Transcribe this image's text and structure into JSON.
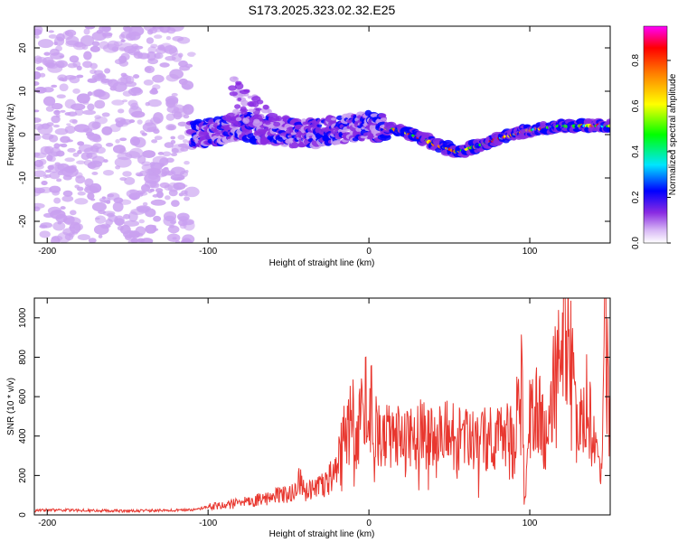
{
  "title": "S173.2025.323.02.32.E25",
  "chart_data": [
    {
      "type": "heatmap",
      "xlabel": "Height of straight line (km)",
      "ylabel": "Frequency (Hz)",
      "xlim": [
        -208,
        150
      ],
      "ylim": [
        -25,
        25
      ],
      "x_ticks": [
        -200,
        -100,
        0,
        100
      ],
      "x_tick_labels": [
        "-200",
        "-100",
        "0",
        "100"
      ],
      "y_ticks": [
        -20,
        -10,
        0,
        10,
        20
      ],
      "y_tick_labels": [
        "-20",
        "-10",
        "0",
        "10",
        "20"
      ],
      "ridge_trace": {
        "x": [
          -110,
          -95,
          -80,
          -60,
          -40,
          -20,
          0,
          20,
          40,
          55,
          65,
          80,
          100,
          120,
          150
        ],
        "y": [
          0,
          0.5,
          2,
          1,
          0,
          1,
          2,
          1,
          -2,
          -4,
          -3,
          -1,
          1,
          2,
          2
        ]
      },
      "colorbar": {
        "label": "Normalized spectral amplitude",
        "range": [
          0,
          0.95
        ],
        "ticks": [
          0.0,
          0.2,
          0.4,
          0.6,
          0.8
        ],
        "tick_labels": [
          "0.0",
          "0.2",
          "0.4",
          "0.6",
          "0.8"
        ],
        "colors": [
          "#ffffff",
          "#c9a0f0",
          "#8a2be2",
          "#0000ff",
          "#00ffff",
          "#00ff00",
          "#ffff00",
          "#ff8000",
          "#ff0000",
          "#ff00ff"
        ]
      }
    },
    {
      "type": "line",
      "xlabel": "Height of straight line (km)",
      "ylabel": "SNR (10 * v/v)",
      "xlim": [
        -208,
        150
      ],
      "ylim": [
        0,
        1100
      ],
      "x_ticks": [
        -200,
        -100,
        0,
        100
      ],
      "x_tick_labels": [
        "-200",
        "-100",
        "0",
        "100"
      ],
      "y_ticks": [
        0,
        200,
        400,
        600,
        800,
        1000
      ],
      "y_tick_labels": [
        "0",
        "200",
        "400",
        "600",
        "800",
        "1000"
      ],
      "series": [
        {
          "name": "SNR",
          "color": "#e8372f",
          "x": [
            -208,
            -200,
            -150,
            -110,
            -100,
            -80,
            -60,
            -45,
            -44,
            -40,
            -30,
            -25,
            -20,
            -15,
            -10,
            -8,
            -5,
            0,
            5,
            10,
            20,
            30,
            40,
            50,
            60,
            70,
            80,
            90,
            95,
            97,
            100,
            105,
            110,
            115,
            120,
            122,
            125,
            130,
            135,
            140,
            145,
            147,
            150
          ],
          "y": [
            20,
            25,
            20,
            25,
            40,
            60,
            90,
            120,
            200,
            110,
            150,
            180,
            250,
            400,
            500,
            330,
            520,
            600,
            420,
            400,
            400,
            410,
            420,
            400,
            380,
            390,
            380,
            400,
            700,
            30,
            500,
            580,
            380,
            700,
            900,
            1080,
            850,
            350,
            600,
            350,
            200,
            1040,
            350
          ]
        }
      ]
    }
  ]
}
